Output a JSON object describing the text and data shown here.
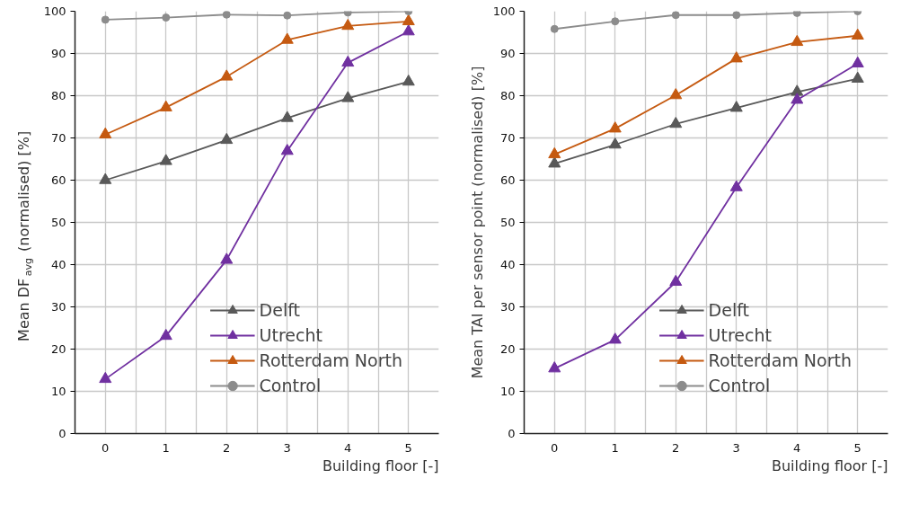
{
  "chart_data": [
    {
      "type": "line",
      "xlabel": "Building floor [-]",
      "ylabel": "Mean DF$_{avg}$ (normalised) [%]",
      "x": [
        0,
        1,
        2,
        3,
        4,
        5
      ],
      "xlim": [
        -0.5,
        5.5
      ],
      "xticks": [
        0,
        {
          "value": 0.5,
          "label": null
        },
        1,
        {
          "value": 1.5,
          "label": null
        },
        2,
        {
          "value": 2.5,
          "label": null
        },
        3,
        {
          "value": 3.5,
          "label": null
        },
        4,
        {
          "value": 4.5,
          "label": null
        },
        5
      ],
      "ylim": [
        0,
        100
      ],
      "yticks": [
        0,
        10,
        20,
        30,
        40,
        50,
        60,
        70,
        80,
        90,
        100
      ],
      "grid": true,
      "legend": "bottom right",
      "series": [
        {
          "name": "Delft",
          "color": "#595959",
          "marker": "triangle",
          "values": [
            60,
            64.5,
            69.5,
            74.7,
            79.4,
            83.3
          ]
        },
        {
          "name": "Utrecht",
          "color": "#7030a0",
          "marker": "triangle",
          "values": [
            12.9,
            23.1,
            41.1,
            66.9,
            87.8,
            95.2
          ]
        },
        {
          "name": "Rotterdam North",
          "color": "#c55a11",
          "marker": "triangle",
          "values": [
            70.8,
            77.2,
            84.5,
            93.2,
            96.5,
            97.6
          ]
        },
        {
          "name": "Control",
          "color": "#8c8c8c",
          "marker": "circle",
          "values": [
            98,
            98.5,
            99.2,
            99,
            99.7,
            100
          ]
        }
      ]
    },
    {
      "type": "line",
      "xlabel": "Building floor [-]",
      "ylabel": "Mean TAI per sensor point (normalised) [%]",
      "x": [
        0,
        1,
        2,
        3,
        4,
        5
      ],
      "xlim": [
        -0.5,
        5.5
      ],
      "xticks": [
        0,
        {
          "value": 0.5,
          "label": null
        },
        1,
        {
          "value": 1.5,
          "label": null
        },
        2,
        {
          "value": 2.5,
          "label": null
        },
        3,
        {
          "value": 3.5,
          "label": null
        },
        4,
        {
          "value": 4.5,
          "label": null
        },
        5
      ],
      "ylim": [
        0,
        100
      ],
      "yticks": [
        0,
        10,
        20,
        30,
        40,
        50,
        60,
        70,
        80,
        90,
        100
      ],
      "grid": true,
      "legend": "bottom right",
      "series": [
        {
          "name": "Delft",
          "color": "#595959",
          "marker": "triangle",
          "values": [
            63.9,
            68.4,
            73.3,
            77.1,
            80.9,
            84.0
          ]
        },
        {
          "name": "Utrecht",
          "color": "#7030a0",
          "marker": "triangle",
          "values": [
            15.4,
            22.2,
            35.9,
            58.3,
            79,
            87.6
          ]
        },
        {
          "name": "Rotterdam North",
          "color": "#c55a11",
          "marker": "triangle",
          "values": [
            66.1,
            72.2,
            80.1,
            88.8,
            92.7,
            94.2
          ]
        },
        {
          "name": "Control",
          "color": "#8c8c8c",
          "marker": "circle",
          "values": [
            95.8,
            97.6,
            99.1,
            99.1,
            99.6,
            100
          ]
        }
      ]
    }
  ]
}
